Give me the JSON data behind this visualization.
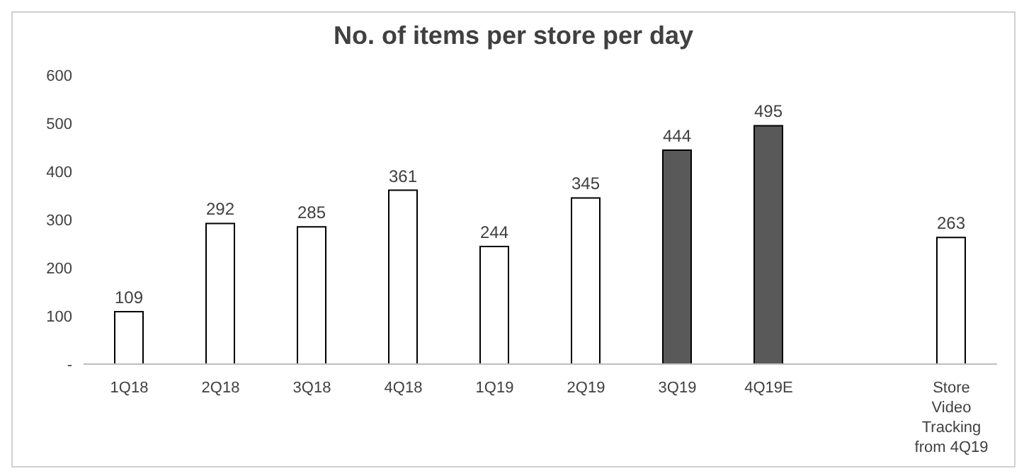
{
  "chart_data": {
    "type": "bar",
    "title": "No. of items per store per day",
    "categories": [
      "1Q18",
      "2Q18",
      "3Q18",
      "4Q18",
      "1Q19",
      "2Q19",
      "3Q19",
      "4Q19E",
      null,
      "Store Video Tracking from 4Q19"
    ],
    "values": [
      109,
      292,
      285,
      361,
      244,
      345,
      444,
      495,
      null,
      263
    ],
    "colors": [
      "#ffffff",
      "#ffffff",
      "#ffffff",
      "#ffffff",
      "#ffffff",
      "#ffffff",
      "#595959",
      "#595959",
      null,
      "#ffffff"
    ],
    "ylim": [
      0,
      600
    ],
    "yticks": [
      {
        "value": 0,
        "label": "-"
      },
      100,
      200,
      300,
      400,
      500,
      600
    ],
    "data_labels": true
  }
}
